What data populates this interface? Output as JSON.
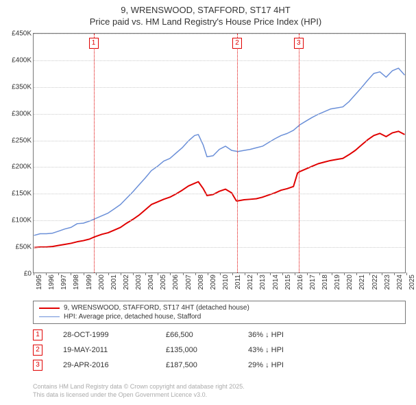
{
  "title_line1": "9, WRENSWOOD, STAFFORD, ST17 4HT",
  "title_line2": "Price paid vs. HM Land Registry's House Price Index (HPI)",
  "chart": {
    "type": "line",
    "x_start_year": 1995,
    "x_end_year": 2025,
    "ylim": [
      0,
      450000
    ],
    "ytick_step": 50000,
    "ytick_labels": [
      "£0",
      "£50K",
      "£100K",
      "£150K",
      "£200K",
      "£250K",
      "£300K",
      "£350K",
      "£400K",
      "£450K"
    ],
    "xtick_years": [
      1995,
      1996,
      1997,
      1998,
      1999,
      2000,
      2001,
      2002,
      2003,
      2004,
      2005,
      2006,
      2007,
      2008,
      2009,
      2010,
      2011,
      2012,
      2013,
      2014,
      2015,
      2016,
      2017,
      2018,
      2019,
      2020,
      2021,
      2022,
      2023,
      2024,
      2025
    ],
    "grid_color": "#cccccc",
    "border_color": "#777777",
    "background_color": "#ffffff",
    "label_fontsize": 10,
    "title_fontsize": 13,
    "series": [
      {
        "id": "hpi",
        "label": "HPI: Average price, detached house, Stafford",
        "color": "#6a8fd8",
        "width": 1.5,
        "points": [
          [
            1995.0,
            70000
          ],
          [
            1995.5,
            73000
          ],
          [
            1996.0,
            73000
          ],
          [
            1996.5,
            74000
          ],
          [
            1997.0,
            78000
          ],
          [
            1997.5,
            82000
          ],
          [
            1998.0,
            85000
          ],
          [
            1998.5,
            92000
          ],
          [
            1999.0,
            93000
          ],
          [
            1999.5,
            97000
          ],
          [
            2000.0,
            102000
          ],
          [
            2000.5,
            107000
          ],
          [
            2001.0,
            112000
          ],
          [
            2001.5,
            120000
          ],
          [
            2002.0,
            128000
          ],
          [
            2002.5,
            140000
          ],
          [
            2003.0,
            152000
          ],
          [
            2003.5,
            165000
          ],
          [
            2004.0,
            178000
          ],
          [
            2004.5,
            192000
          ],
          [
            2005.0,
            200000
          ],
          [
            2005.5,
            210000
          ],
          [
            2006.0,
            215000
          ],
          [
            2006.5,
            225000
          ],
          [
            2007.0,
            235000
          ],
          [
            2007.5,
            248000
          ],
          [
            2008.0,
            258000
          ],
          [
            2008.3,
            260000
          ],
          [
            2008.7,
            240000
          ],
          [
            2009.0,
            218000
          ],
          [
            2009.5,
            220000
          ],
          [
            2010.0,
            232000
          ],
          [
            2010.5,
            238000
          ],
          [
            2011.0,
            230000
          ],
          [
            2011.5,
            228000
          ],
          [
            2012.0,
            230000
          ],
          [
            2012.5,
            232000
          ],
          [
            2013.0,
            235000
          ],
          [
            2013.5,
            238000
          ],
          [
            2014.0,
            245000
          ],
          [
            2014.5,
            252000
          ],
          [
            2015.0,
            258000
          ],
          [
            2015.5,
            262000
          ],
          [
            2016.0,
            268000
          ],
          [
            2016.5,
            278000
          ],
          [
            2017.0,
            285000
          ],
          [
            2017.5,
            292000
          ],
          [
            2018.0,
            298000
          ],
          [
            2018.5,
            303000
          ],
          [
            2019.0,
            308000
          ],
          [
            2019.5,
            310000
          ],
          [
            2020.0,
            312000
          ],
          [
            2020.5,
            322000
          ],
          [
            2021.0,
            335000
          ],
          [
            2021.5,
            348000
          ],
          [
            2022.0,
            362000
          ],
          [
            2022.5,
            375000
          ],
          [
            2023.0,
            378000
          ],
          [
            2023.5,
            368000
          ],
          [
            2024.0,
            380000
          ],
          [
            2024.5,
            385000
          ],
          [
            2025.0,
            372000
          ]
        ]
      },
      {
        "id": "property",
        "label": "9, WRENSWOOD, STAFFORD, ST17 4HT (detached house)",
        "color": "#e00000",
        "width": 2,
        "points": [
          [
            1995.0,
            47000
          ],
          [
            1995.5,
            48000
          ],
          [
            1996.0,
            48000
          ],
          [
            1996.5,
            49000
          ],
          [
            1997.0,
            51000
          ],
          [
            1997.5,
            53000
          ],
          [
            1998.0,
            55000
          ],
          [
            1998.5,
            58000
          ],
          [
            1999.0,
            60000
          ],
          [
            1999.5,
            63000
          ],
          [
            1999.83,
            66500
          ],
          [
            2000.0,
            68000
          ],
          [
            2000.5,
            72000
          ],
          [
            2001.0,
            75000
          ],
          [
            2001.5,
            80000
          ],
          [
            2002.0,
            85000
          ],
          [
            2002.5,
            93000
          ],
          [
            2003.0,
            100000
          ],
          [
            2003.5,
            108000
          ],
          [
            2004.0,
            118000
          ],
          [
            2004.5,
            128000
          ],
          [
            2005.0,
            133000
          ],
          [
            2005.5,
            138000
          ],
          [
            2006.0,
            142000
          ],
          [
            2006.5,
            148000
          ],
          [
            2007.0,
            155000
          ],
          [
            2007.5,
            163000
          ],
          [
            2008.0,
            168000
          ],
          [
            2008.3,
            171000
          ],
          [
            2008.7,
            158000
          ],
          [
            2009.0,
            145000
          ],
          [
            2009.5,
            147000
          ],
          [
            2010.0,
            153000
          ],
          [
            2010.5,
            157000
          ],
          [
            2011.0,
            150000
          ],
          [
            2011.38,
            135000
          ],
          [
            2011.5,
            135000
          ],
          [
            2012.0,
            137000
          ],
          [
            2012.5,
            138000
          ],
          [
            2013.0,
            139000
          ],
          [
            2013.5,
            142000
          ],
          [
            2014.0,
            146000
          ],
          [
            2014.5,
            150000
          ],
          [
            2015.0,
            155000
          ],
          [
            2015.5,
            158000
          ],
          [
            2016.0,
            162000
          ],
          [
            2016.33,
            187500
          ],
          [
            2016.5,
            190000
          ],
          [
            2017.0,
            195000
          ],
          [
            2017.5,
            200000
          ],
          [
            2018.0,
            205000
          ],
          [
            2018.5,
            208000
          ],
          [
            2019.0,
            211000
          ],
          [
            2019.5,
            213000
          ],
          [
            2020.0,
            215000
          ],
          [
            2020.5,
            222000
          ],
          [
            2021.0,
            230000
          ],
          [
            2021.5,
            240000
          ],
          [
            2022.0,
            250000
          ],
          [
            2022.5,
            258000
          ],
          [
            2023.0,
            262000
          ],
          [
            2023.5,
            256000
          ],
          [
            2024.0,
            263000
          ],
          [
            2024.5,
            266000
          ],
          [
            2025.0,
            260000
          ]
        ]
      }
    ],
    "markers": [
      {
        "n": "1",
        "year": 1999.83,
        "color": "#e00000"
      },
      {
        "n": "2",
        "year": 2011.38,
        "color": "#e00000"
      },
      {
        "n": "3",
        "year": 2016.33,
        "color": "#e00000"
      }
    ]
  },
  "events": [
    {
      "n": "1",
      "date": "28-OCT-1999",
      "price": "£66,500",
      "diff": "36% ↓ HPI",
      "color": "#e00000"
    },
    {
      "n": "2",
      "date": "19-MAY-2011",
      "price": "£135,000",
      "diff": "43% ↓ HPI",
      "color": "#e00000"
    },
    {
      "n": "3",
      "date": "29-APR-2016",
      "price": "£187,500",
      "diff": "29% ↓ HPI",
      "color": "#e00000"
    }
  ],
  "footer_line1": "Contains HM Land Registry data © Crown copyright and database right 2025.",
  "footer_line2": "This data is licensed under the Open Government Licence v3.0."
}
